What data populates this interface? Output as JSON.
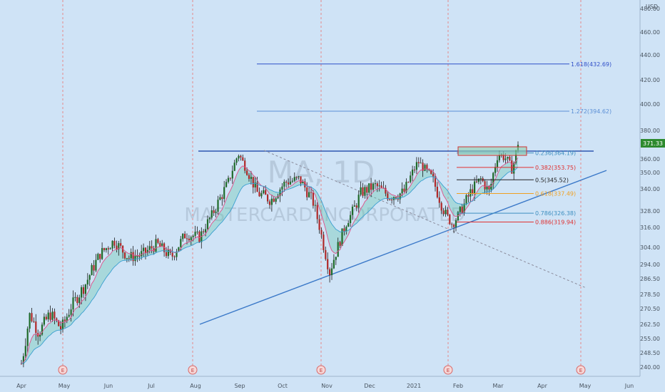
{
  "chart_data": {
    "type": "candlestick",
    "symbol": "MA",
    "interval": "1D",
    "watermark": {
      "symbol_interval": "MA, 1D",
      "company": "MASTERCARD INCORPORATED"
    },
    "currency": "USD",
    "last_price": 371.33,
    "y_ticks": [
      240,
      248.5,
      255,
      262.5,
      270.5,
      278.5,
      286.5,
      294,
      304,
      316,
      328,
      340,
      350,
      360,
      380,
      400,
      420,
      440,
      460,
      480
    ],
    "y_tick_labels": [
      "240.00",
      "248.50",
      "255.00",
      "262.50",
      "270.50",
      "278.50",
      "286.50",
      "294.00",
      "304.00",
      "316.00",
      "328.00",
      "340.00",
      "350.00",
      "360.00",
      "380.00",
      "400.00",
      "420.00",
      "440.00",
      "460.00",
      "480.00"
    ],
    "x_labels": [
      {
        "label": "Apr",
        "day": 0
      },
      {
        "label": "May",
        "day": 30
      },
      {
        "label": "Jun",
        "day": 61
      },
      {
        "label": "Jul",
        "day": 91
      },
      {
        "label": "Aug",
        "day": 122
      },
      {
        "label": "Sep",
        "day": 153
      },
      {
        "label": "Oct",
        "day": 183
      },
      {
        "label": "Nov",
        "day": 214
      },
      {
        "label": "Dec",
        "day": 244
      },
      {
        "label": "2021",
        "day": 275
      },
      {
        "label": "Feb",
        "day": 306
      },
      {
        "label": "Mar",
        "day": 334
      },
      {
        "label": "Apr",
        "day": 365
      },
      {
        "label": "May",
        "day": 395
      },
      {
        "label": "Jun",
        "day": 426
      }
    ],
    "earnings_markers": [
      {
        "label": "E",
        "day": 29
      },
      {
        "label": "E",
        "day": 120
      },
      {
        "label": "E",
        "day": 210
      },
      {
        "label": "E",
        "day": 299
      },
      {
        "label": "E",
        "day": 392
      }
    ],
    "earnings_dates_vlines": [
      29,
      120,
      210,
      299,
      392
    ],
    "fib_levels": [
      {
        "ratio": "1.618",
        "price": 432.69,
        "color": "#2f4fc8"
      },
      {
        "ratio": "1.272",
        "price": 394.62,
        "color": "#5b8fd6"
      },
      {
        "ratio": "0.236",
        "price": 364.19,
        "color": "#3e8fc0"
      },
      {
        "ratio": "0.382",
        "price": 353.75,
        "color": "#e03030"
      },
      {
        "ratio": "0.5",
        "price": 345.52,
        "color": "#222222"
      },
      {
        "ratio": "0.618",
        "price": 337.49,
        "color": "#f0a020"
      },
      {
        "ratio": "0.786",
        "price": 326.38,
        "color": "#3e8fc0"
      },
      {
        "ratio": "0.886",
        "price": 319.94,
        "color": "#e03030"
      }
    ],
    "fib_labels": [
      "0.236(364.19)",
      "0.382(353.75)",
      "0.5(345.52)",
      "0.618(337.49)",
      "0.786(326.38)",
      "0.886(319.94)",
      "1.272(394.62)",
      "1.618(432.69)"
    ],
    "resistance_price": 365.5,
    "resistance_range_days": [
      124,
      401
    ],
    "ascending_trendline": {
      "from": {
        "day": 125,
        "price": 262.5
      },
      "to": {
        "day": 410,
        "price": 351.5
      }
    },
    "descending_trendline": {
      "from": {
        "day": 170,
        "price": 366
      },
      "to": {
        "day": 395,
        "price": 282
      }
    },
    "series_points": [
      {
        "day": 0,
        "price": 242
      },
      {
        "day": 6,
        "price": 268
      },
      {
        "day": 12,
        "price": 258
      },
      {
        "day": 20,
        "price": 268
      },
      {
        "day": 28,
        "price": 260
      },
      {
        "day": 35,
        "price": 272
      },
      {
        "day": 45,
        "price": 284
      },
      {
        "day": 55,
        "price": 300
      },
      {
        "day": 65,
        "price": 308
      },
      {
        "day": 75,
        "price": 298
      },
      {
        "day": 85,
        "price": 300
      },
      {
        "day": 95,
        "price": 306
      },
      {
        "day": 105,
        "price": 298
      },
      {
        "day": 115,
        "price": 312
      },
      {
        "day": 125,
        "price": 310
      },
      {
        "day": 135,
        "price": 328
      },
      {
        "day": 145,
        "price": 344
      },
      {
        "day": 152,
        "price": 364
      },
      {
        "day": 158,
        "price": 352
      },
      {
        "day": 165,
        "price": 338
      },
      {
        "day": 175,
        "price": 334
      },
      {
        "day": 185,
        "price": 344
      },
      {
        "day": 195,
        "price": 346
      },
      {
        "day": 205,
        "price": 332
      },
      {
        "day": 212,
        "price": 304
      },
      {
        "day": 216,
        "price": 290
      },
      {
        "day": 220,
        "price": 300
      },
      {
        "day": 228,
        "price": 320
      },
      {
        "day": 238,
        "price": 338
      },
      {
        "day": 248,
        "price": 342
      },
      {
        "day": 258,
        "price": 336
      },
      {
        "day": 268,
        "price": 338
      },
      {
        "day": 278,
        "price": 358
      },
      {
        "day": 288,
        "price": 346
      },
      {
        "day": 296,
        "price": 328
      },
      {
        "day": 302,
        "price": 318
      },
      {
        "day": 308,
        "price": 328
      },
      {
        "day": 316,
        "price": 340
      },
      {
        "day": 322,
        "price": 346
      },
      {
        "day": 328,
        "price": 338
      },
      {
        "day": 334,
        "price": 364
      },
      {
        "day": 340,
        "price": 360
      },
      {
        "day": 344,
        "price": 352
      },
      {
        "day": 348,
        "price": 371.33
      }
    ],
    "last_price_label": "371.33",
    "currency_label": "USD",
    "grid": false,
    "legend": "none"
  }
}
